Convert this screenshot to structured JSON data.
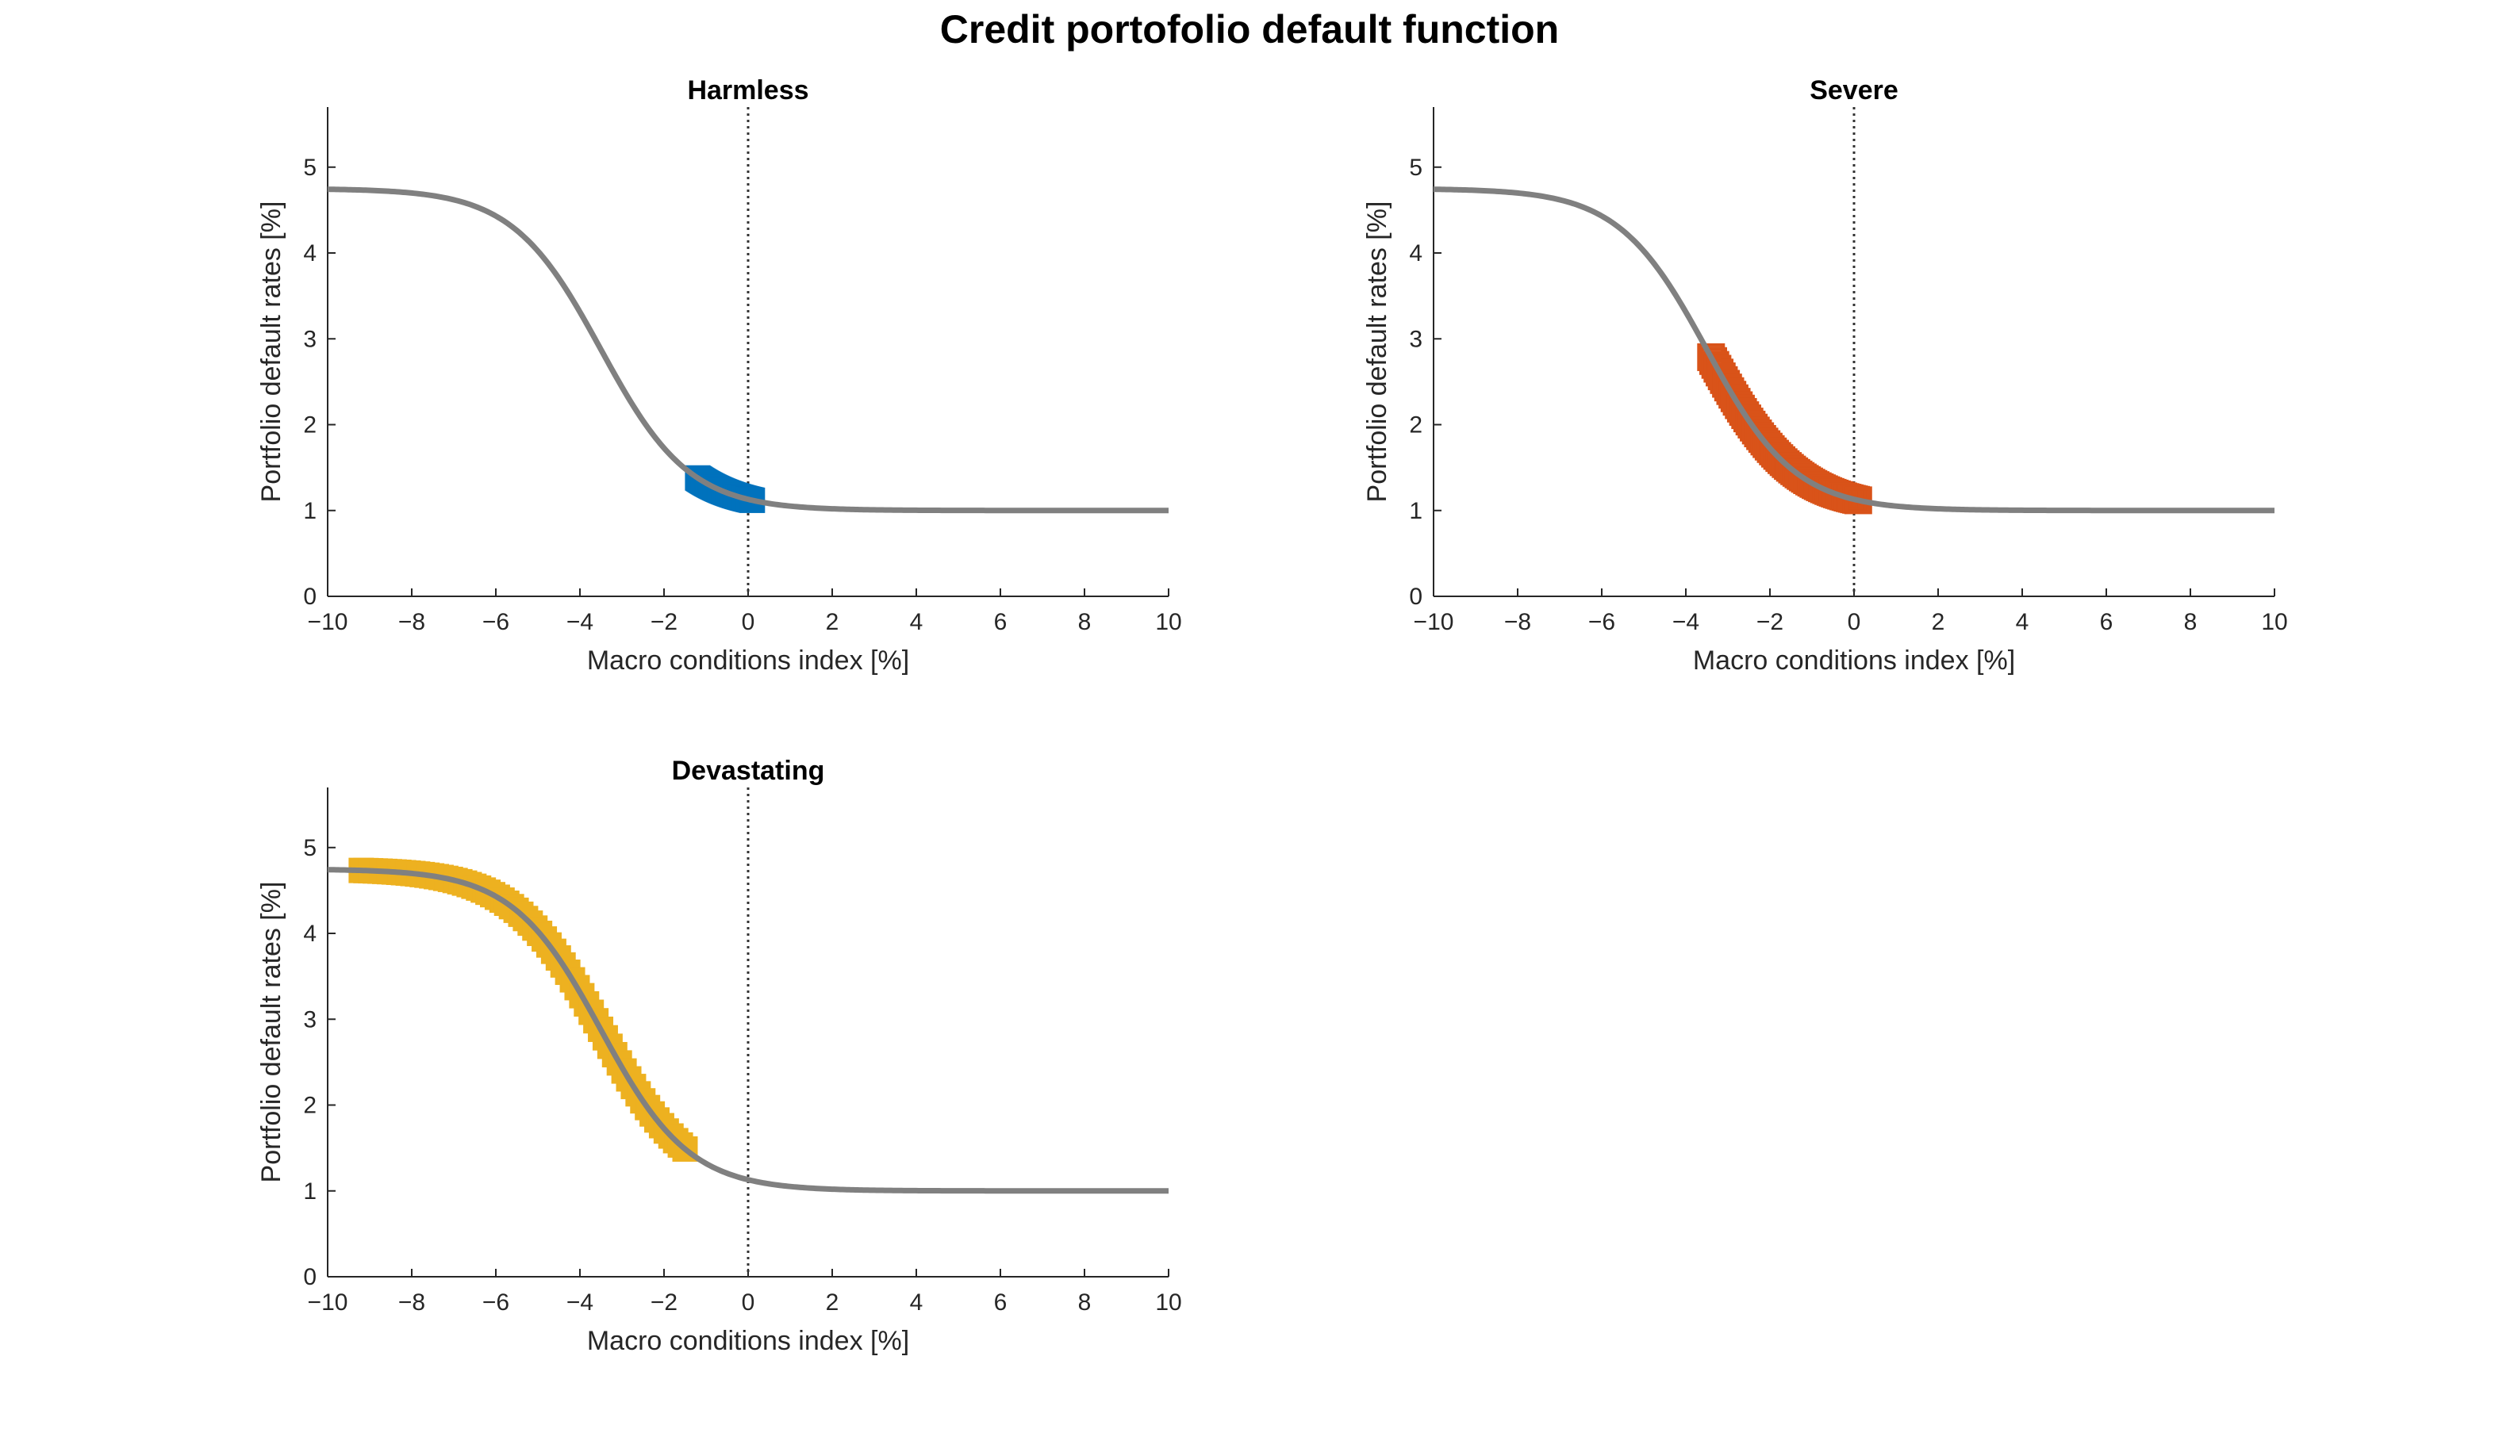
{
  "figure": {
    "title": "Credit portofolio default function"
  },
  "chart_data": [
    {
      "type": "line",
      "title": "Harmless",
      "xlabel": "Macro conditions index [%]",
      "ylabel": "Portfolio default rates [%]",
      "xlim": [
        -10,
        10
      ],
      "ylim": [
        0,
        5.7
      ],
      "xticks": [
        -10,
        -8,
        -6,
        -4,
        -2,
        0,
        2,
        4,
        6,
        8,
        10
      ],
      "yticks": [
        0,
        1,
        2,
        3,
        4,
        5
      ],
      "grid": false,
      "reference_line": {
        "x": 0,
        "style": "dotted"
      },
      "curve": {
        "color": "#808080",
        "kind": "logistic",
        "lower": 1.0,
        "upper": 4.75,
        "midpoint": -3.5,
        "slope": 0.95
      },
      "series": [
        {
          "color": "#0072BD",
          "marker": "square",
          "x_range": [
            -1.2,
            0.1
          ]
        }
      ]
    },
    {
      "type": "line",
      "title": "Severe",
      "xlabel": "Macro conditions index [%]",
      "ylabel": "Portfolio default rates [%]",
      "xlim": [
        -10,
        10
      ],
      "ylim": [
        0,
        5.7
      ],
      "xticks": [
        -10,
        -8,
        -6,
        -4,
        -2,
        0,
        2,
        4,
        6,
        8,
        10
      ],
      "yticks": [
        0,
        1,
        2,
        3,
        4,
        5
      ],
      "grid": false,
      "reference_line": {
        "x": 0,
        "style": "dotted"
      },
      "curve": {
        "color": "#808080",
        "kind": "logistic",
        "lower": 1.0,
        "upper": 4.75,
        "midpoint": -3.5,
        "slope": 0.95
      },
      "series": [
        {
          "color": "#D95319",
          "marker": "square-open",
          "x_range": [
            -3.4,
            0.1
          ]
        }
      ]
    },
    {
      "type": "line",
      "title": "Devastating",
      "xlabel": "Macro conditions index [%]",
      "ylabel": "Portfolio default rates [%]",
      "xlim": [
        -10,
        10
      ],
      "ylim": [
        0,
        5.7
      ],
      "xticks": [
        -10,
        -8,
        -6,
        -4,
        -2,
        0,
        2,
        4,
        6,
        8,
        10
      ],
      "yticks": [
        0,
        1,
        2,
        3,
        4,
        5
      ],
      "grid": false,
      "reference_line": {
        "x": 0,
        "style": "dotted"
      },
      "curve": {
        "color": "#808080",
        "kind": "logistic",
        "lower": 1.0,
        "upper": 4.75,
        "midpoint": -3.5,
        "slope": 0.95
      },
      "series": [
        {
          "color": "#EDB120",
          "marker": "square",
          "x_range": [
            -9.2,
            -1.5
          ]
        }
      ]
    }
  ]
}
